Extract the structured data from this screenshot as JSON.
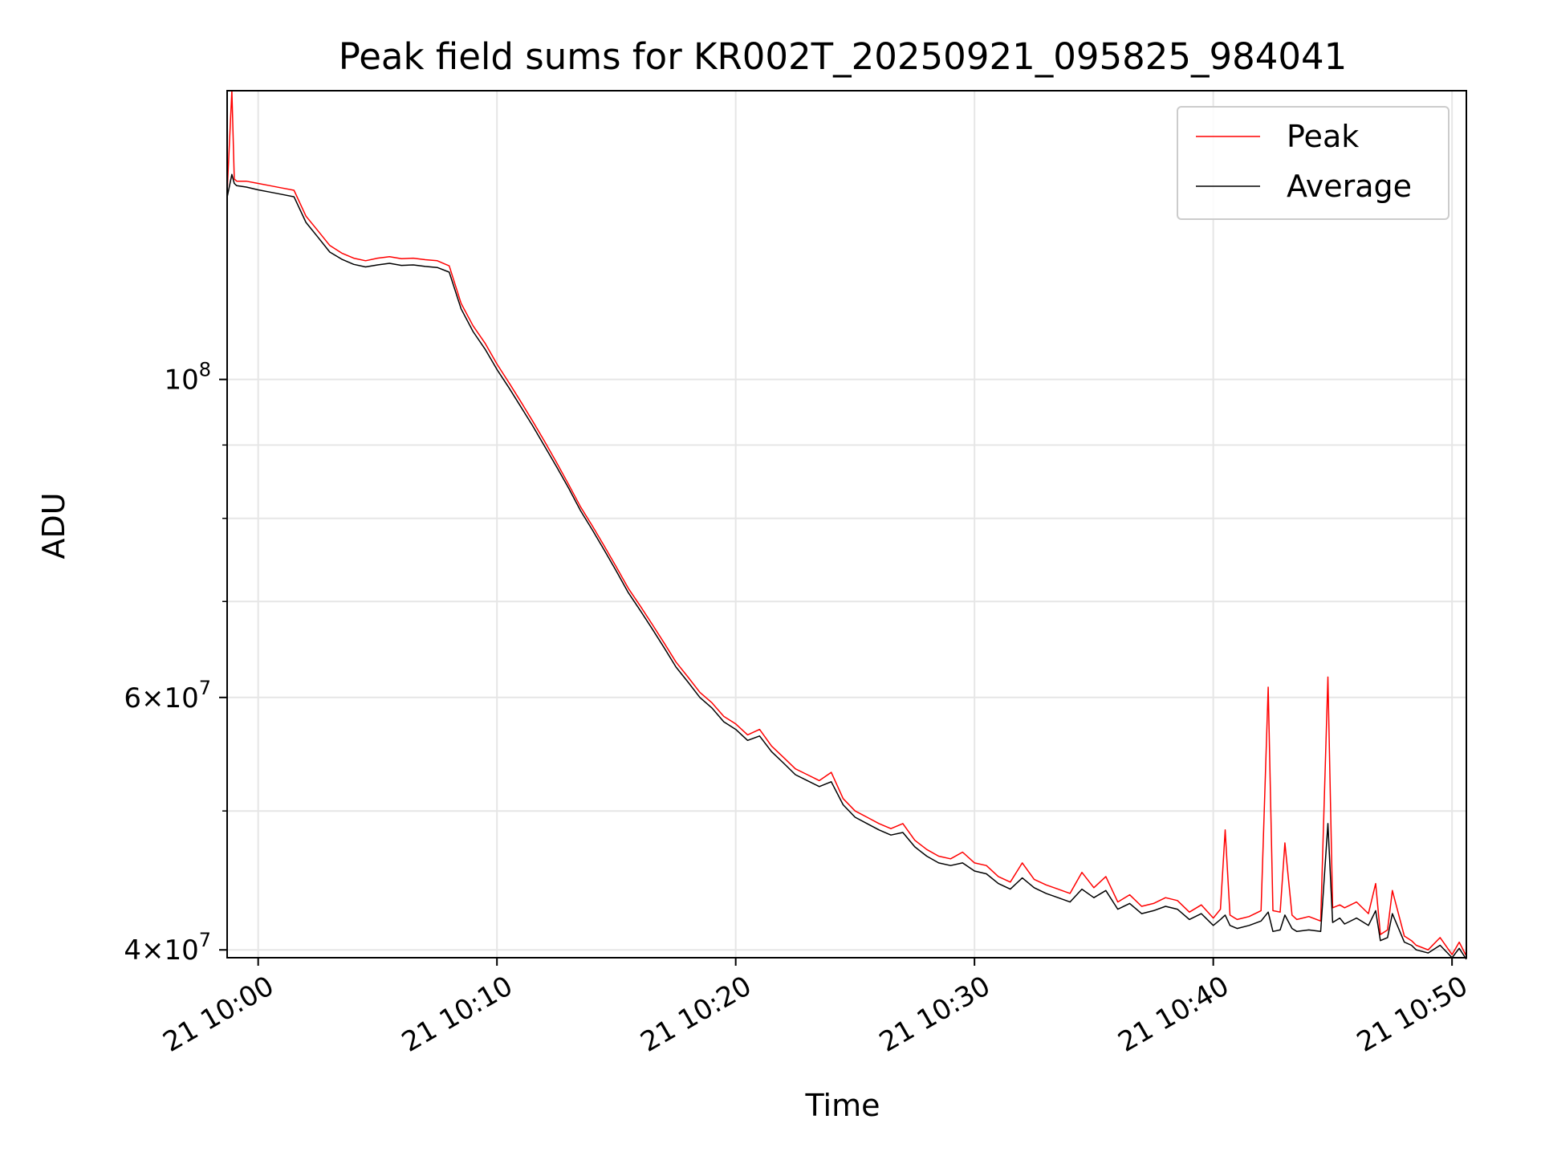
{
  "chart_data": {
    "type": "line",
    "title": "Peak field sums for KR002T_20250921_095825_984041",
    "xlabel": "Time",
    "ylabel": "ADU",
    "yscale": "log",
    "grid": true,
    "legend_position": "top-right",
    "x_unit": "minutes after 21 10:00",
    "xlim": [
      -1.3,
      50.6
    ],
    "ylim": [
      39500000,
      159000000
    ],
    "x_ticks": [
      {
        "value": 0,
        "label": "21 10:00"
      },
      {
        "value": 10,
        "label": "21 10:10"
      },
      {
        "value": 20,
        "label": "21 10:20"
      },
      {
        "value": 30,
        "label": "21 10:30"
      },
      {
        "value": 40,
        "label": "21 10:40"
      },
      {
        "value": 50,
        "label": "21 10:50"
      }
    ],
    "y_ticks_major": [
      {
        "value": 40000000,
        "base": "4",
        "exp": "7"
      },
      {
        "value": 60000000,
        "base": "6",
        "exp": "7"
      },
      {
        "value": 100000000,
        "base": "",
        "exp": "8"
      }
    ],
    "y_ticks_minor": [
      50000000,
      70000000,
      80000000,
      90000000
    ],
    "series": [
      {
        "name": "Peak",
        "color": "#ff0000",
        "x": [
          -1.3,
          -1.1,
          -1.0,
          -0.9,
          -0.5,
          0,
          0.5,
          1.0,
          1.5,
          2.0,
          2.5,
          3.0,
          3.5,
          4.0,
          4.5,
          5.0,
          5.5,
          6.0,
          6.5,
          7.0,
          7.5,
          8.0,
          8.5,
          9.0,
          9.5,
          10.0,
          10.5,
          11.0,
          11.5,
          12.0,
          12.5,
          13.0,
          13.5,
          14.0,
          14.5,
          15.0,
          15.5,
          16.0,
          16.5,
          17.0,
          17.5,
          18.0,
          18.5,
          19.0,
          19.5,
          20.0,
          20.5,
          21.0,
          21.5,
          22.0,
          22.5,
          23.0,
          23.5,
          24.0,
          24.5,
          25.0,
          25.5,
          26.0,
          26.5,
          27.0,
          27.5,
          28.0,
          28.5,
          29.0,
          29.5,
          30.0,
          30.5,
          31.0,
          31.5,
          32.0,
          32.5,
          33.0,
          33.5,
          34.0,
          34.5,
          35.0,
          35.5,
          36.0,
          36.5,
          37.0,
          37.5,
          38.0,
          38.5,
          39.0,
          39.5,
          40.0,
          40.3,
          40.5,
          40.7,
          41.0,
          41.5,
          42.0,
          42.3,
          42.5,
          42.8,
          43.0,
          43.3,
          43.5,
          44.0,
          44.5,
          44.8,
          45.0,
          45.3,
          45.5,
          46.0,
          46.5,
          46.8,
          47.0,
          47.3,
          47.5,
          48.0,
          48.3,
          48.5,
          49.0,
          49.5,
          50.0,
          50.3,
          50.6
        ],
        "y": [
          135000000,
          159000000,
          138000000,
          137500000,
          137500000,
          137000000,
          136500000,
          136000000,
          135500000,
          130000000,
          127000000,
          124000000,
          122500000,
          121500000,
          121000000,
          121500000,
          121800000,
          121400000,
          121500000,
          121200000,
          121000000,
          120000000,
          113000000,
          109000000,
          106000000,
          102500000,
          99500000,
          96500000,
          93500000,
          90500000,
          87500000,
          84500000,
          81500000,
          79000000,
          76500000,
          74000000,
          71500000,
          69500000,
          67500000,
          65500000,
          63500000,
          62000000,
          60500000,
          59500000,
          58200000,
          57500000,
          56500000,
          57000000,
          55500000,
          54500000,
          53500000,
          53000000,
          52500000,
          53200000,
          51000000,
          50000000,
          49500000,
          49000000,
          48600000,
          49000000,
          47700000,
          47000000,
          46500000,
          46300000,
          46800000,
          46000000,
          45800000,
          45000000,
          44600000,
          46000000,
          44800000,
          44400000,
          44100000,
          43800000,
          45300000,
          44200000,
          45000000,
          43200000,
          43700000,
          42900000,
          43100000,
          43500000,
          43300000,
          42500000,
          43000000,
          42100000,
          42700000,
          48500000,
          42300000,
          42000000,
          42200000,
          42600000,
          61000000,
          42600000,
          42500000,
          47500000,
          42300000,
          42000000,
          42200000,
          41900000,
          62000000,
          42800000,
          43000000,
          42800000,
          43200000,
          42400000,
          44500000,
          41000000,
          41300000,
          44000000,
          40900000,
          40600000,
          40300000,
          40000000,
          40800000,
          39700000,
          40500000,
          39600000
        ]
      },
      {
        "name": "Average",
        "color": "#000000",
        "x": [
          -1.3,
          -1.1,
          -1.0,
          -0.9,
          -0.5,
          0,
          0.5,
          1.0,
          1.5,
          2.0,
          2.5,
          3.0,
          3.5,
          4.0,
          4.5,
          5.0,
          5.5,
          6.0,
          6.5,
          7.0,
          7.5,
          8.0,
          8.5,
          9.0,
          9.5,
          10.0,
          10.5,
          11.0,
          11.5,
          12.0,
          12.5,
          13.0,
          13.5,
          14.0,
          14.5,
          15.0,
          15.5,
          16.0,
          16.5,
          17.0,
          17.5,
          18.0,
          18.5,
          19.0,
          19.5,
          20.0,
          20.5,
          21.0,
          21.5,
          22.0,
          22.5,
          23.0,
          23.5,
          24.0,
          24.5,
          25.0,
          25.5,
          26.0,
          26.5,
          27.0,
          27.5,
          28.0,
          28.5,
          29.0,
          29.5,
          30.0,
          30.5,
          31.0,
          31.5,
          32.0,
          32.5,
          33.0,
          33.5,
          34.0,
          34.5,
          35.0,
          35.5,
          36.0,
          36.5,
          37.0,
          37.5,
          38.0,
          38.5,
          39.0,
          39.5,
          40.0,
          40.3,
          40.5,
          40.7,
          41.0,
          41.5,
          42.0,
          42.3,
          42.5,
          42.8,
          43.0,
          43.3,
          43.5,
          44.0,
          44.5,
          44.8,
          45.0,
          45.3,
          45.5,
          46.0,
          46.5,
          46.8,
          47.0,
          47.3,
          47.5,
          48.0,
          48.3,
          48.5,
          49.0,
          49.5,
          50.0,
          50.3,
          50.6
        ],
        "y": [
          134000000,
          139000000,
          137000000,
          136500000,
          136200000,
          135600000,
          135100000,
          134600000,
          134100000,
          128700000,
          125700000,
          122700000,
          121300000,
          120300000,
          119800000,
          120200000,
          120500000,
          120100000,
          120200000,
          119900000,
          119700000,
          118800000,
          112000000,
          108000000,
          105000000,
          101600000,
          98700000,
          95700000,
          92800000,
          89800000,
          86900000,
          84000000,
          81000000,
          78500000,
          76000000,
          73500000,
          71000000,
          69000000,
          67000000,
          65000000,
          63000000,
          61500000,
          60000000,
          59000000,
          57700000,
          57000000,
          56000000,
          56400000,
          55000000,
          54000000,
          53000000,
          52500000,
          52000000,
          52400000,
          50500000,
          49500000,
          49000000,
          48500000,
          48100000,
          48300000,
          47200000,
          46500000,
          46000000,
          45800000,
          46000000,
          45400000,
          45200000,
          44500000,
          44100000,
          44900000,
          44200000,
          43800000,
          43500000,
          43200000,
          44100000,
          43500000,
          44000000,
          42700000,
          43100000,
          42400000,
          42600000,
          42900000,
          42700000,
          42000000,
          42400000,
          41600000,
          42000000,
          42300000,
          41600000,
          41400000,
          41600000,
          41900000,
          42500000,
          41200000,
          41300000,
          42300000,
          41400000,
          41200000,
          41300000,
          41200000,
          49000000,
          41800000,
          42100000,
          41700000,
          42100000,
          41600000,
          42600000,
          40600000,
          40800000,
          42400000,
          40500000,
          40300000,
          40000000,
          39800000,
          40300000,
          39500000,
          40100000,
          39400000
        ]
      }
    ]
  }
}
